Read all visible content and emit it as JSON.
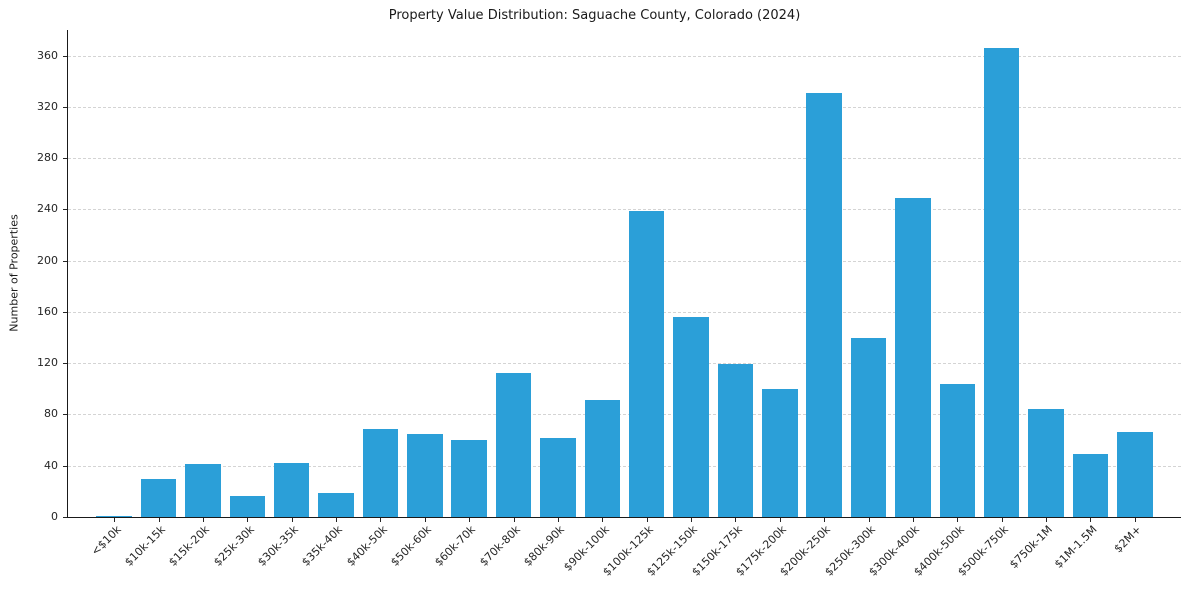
{
  "chart_data": {
    "type": "bar",
    "title": "Property Value Distribution: Saguache County, Colorado (2024)",
    "xlabel": "",
    "ylabel": "Number of Properties",
    "categories": [
      "<$10k",
      "$10k-15k",
      "$15k-20k",
      "$25k-30k",
      "$30k-35k",
      "$35k-40k",
      "$40k-50k",
      "$50k-60k",
      "$60k-70k",
      "$70k-80k",
      "$80k-90k",
      "$90k-100k",
      "$100k-125k",
      "$125k-150k",
      "$150k-175k",
      "$175k-200k",
      "$200k-250k",
      "$250k-300k",
      "$300k-400k",
      "$400k-500k",
      "$500k-750k",
      "$750k-1M",
      "$1M-1.5M",
      "$2M+"
    ],
    "values": [
      1,
      30,
      41,
      16,
      42,
      19,
      69,
      65,
      60,
      112,
      62,
      91,
      239,
      156,
      119,
      100,
      331,
      140,
      249,
      104,
      366,
      84,
      49,
      66
    ],
    "ylim": [
      0,
      380
    ],
    "ytick_step": 40,
    "yticks": [
      0,
      40,
      80,
      120,
      160,
      200,
      240,
      280,
      320,
      360
    ],
    "bar_color": "#2b9fd8",
    "grid": "horizontal-dashed",
    "legend": "none"
  }
}
